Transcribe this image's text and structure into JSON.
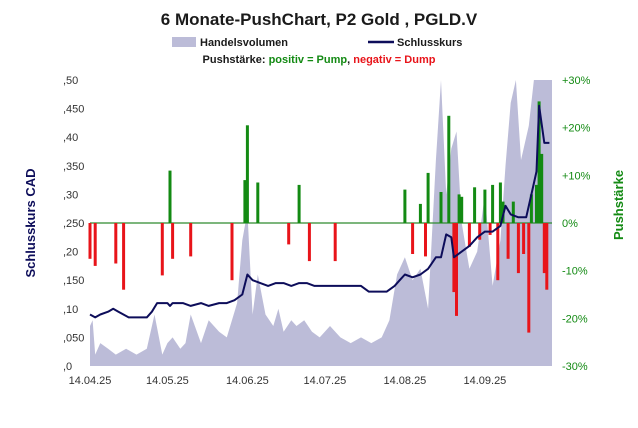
{
  "chart_data": {
    "type": "combo",
    "title": "6 Monate-PushChart, P2 Gold , PGLD.V",
    "legend": {
      "volume_label": "Handelsvolumen",
      "close_label": "Schlusskurs",
      "push_prefix": "Pushstärke: ",
      "push_positive": "positiv = Pump",
      "push_sep": ", ",
      "push_negative": "negativ = Dump",
      "placement": "top-center"
    },
    "ylabel_left": "Schlusskurs CAD",
    "ylabel_right": "Pushstärke",
    "ylim_left": [
      0,
      0.5
    ],
    "ylim_right": [
      -30,
      30
    ],
    "yticks_left": [
      ",0",
      ",050",
      ",10",
      ",150",
      ",20",
      ",250",
      ",30",
      ",350",
      ",40",
      ",450",
      ",50"
    ],
    "yticks_right": [
      "-30%",
      "-20%",
      "-10%",
      "0%",
      "+10%",
      "+20%",
      "+30%"
    ],
    "x_range": [
      "2025-04-14",
      "2025-10-10"
    ],
    "xticks": [
      {
        "date": "2025-04-14",
        "label": "14.04.25"
      },
      {
        "date": "2025-05-14",
        "label": "14.05.25"
      },
      {
        "date": "2025-06-14",
        "label": "14.06.25"
      },
      {
        "date": "2025-07-14",
        "label": "14.07.25"
      },
      {
        "date": "2025-08-14",
        "label": "14.08.25"
      },
      {
        "date": "2025-09-14",
        "label": "14.09.25"
      }
    ],
    "colors": {
      "volume": "#bcbcd8",
      "close": "#0d0d5a",
      "push_positive": "#138a13",
      "push_negative": "#e8141a",
      "zero_line": "#2e8b2e",
      "right_axis": "#138a13",
      "left_axis_title": "#0d0d5a"
    },
    "close_series": [
      [
        "2025-04-14",
        0.09
      ],
      [
        "2025-04-16",
        0.085
      ],
      [
        "2025-04-18",
        0.09
      ],
      [
        "2025-04-21",
        0.095
      ],
      [
        "2025-04-23",
        0.1
      ],
      [
        "2025-04-25",
        0.095
      ],
      [
        "2025-04-29",
        0.085
      ],
      [
        "2025-05-02",
        0.085
      ],
      [
        "2025-05-06",
        0.085
      ],
      [
        "2025-05-08",
        0.095
      ],
      [
        "2025-05-10",
        0.11
      ],
      [
        "2025-05-14",
        0.11
      ],
      [
        "2025-05-15",
        0.105
      ],
      [
        "2025-05-16",
        0.11
      ],
      [
        "2025-05-20",
        0.11
      ],
      [
        "2025-05-23",
        0.105
      ],
      [
        "2025-05-27",
        0.11
      ],
      [
        "2025-05-30",
        0.105
      ],
      [
        "2025-06-03",
        0.11
      ],
      [
        "2025-06-06",
        0.11
      ],
      [
        "2025-06-09",
        0.115
      ],
      [
        "2025-06-12",
        0.125
      ],
      [
        "2025-06-14",
        0.16
      ],
      [
        "2025-06-16",
        0.15
      ],
      [
        "2025-06-19",
        0.145
      ],
      [
        "2025-06-22",
        0.14
      ],
      [
        "2025-06-25",
        0.145
      ],
      [
        "2025-06-28",
        0.145
      ],
      [
        "2025-07-01",
        0.14
      ],
      [
        "2025-07-04",
        0.145
      ],
      [
        "2025-07-07",
        0.145
      ],
      [
        "2025-07-10",
        0.14
      ],
      [
        "2025-07-14",
        0.14
      ],
      [
        "2025-07-17",
        0.14
      ],
      [
        "2025-07-21",
        0.14
      ],
      [
        "2025-07-24",
        0.14
      ],
      [
        "2025-07-28",
        0.14
      ],
      [
        "2025-07-31",
        0.13
      ],
      [
        "2025-08-04",
        0.13
      ],
      [
        "2025-08-07",
        0.13
      ],
      [
        "2025-08-10",
        0.14
      ],
      [
        "2025-08-12",
        0.15
      ],
      [
        "2025-08-14",
        0.16
      ],
      [
        "2025-08-17",
        0.155
      ],
      [
        "2025-08-20",
        0.16
      ],
      [
        "2025-08-23",
        0.17
      ],
      [
        "2025-08-26",
        0.19
      ],
      [
        "2025-08-28",
        0.19
      ],
      [
        "2025-08-30",
        0.23
      ],
      [
        "2025-09-01",
        0.225
      ],
      [
        "2025-09-02",
        0.19
      ],
      [
        "2025-09-05",
        0.2
      ],
      [
        "2025-09-08",
        0.21
      ],
      [
        "2025-09-11",
        0.225
      ],
      [
        "2025-09-14",
        0.235
      ],
      [
        "2025-09-17",
        0.235
      ],
      [
        "2025-09-20",
        0.245
      ],
      [
        "2025-09-22",
        0.28
      ],
      [
        "2025-09-24",
        0.265
      ],
      [
        "2025-09-27",
        0.26
      ],
      [
        "2025-09-30",
        0.26
      ],
      [
        "2025-10-02",
        0.3
      ],
      [
        "2025-10-04",
        0.34
      ],
      [
        "2025-10-05",
        0.455
      ],
      [
        "2025-10-07",
        0.39
      ],
      [
        "2025-10-09",
        0.39
      ]
    ],
    "volume_series": [
      [
        "2025-04-14",
        0.07
      ],
      [
        "2025-04-15",
        0.08
      ],
      [
        "2025-04-16",
        0.02
      ],
      [
        "2025-04-18",
        0.04
      ],
      [
        "2025-04-21",
        0.03
      ],
      [
        "2025-04-24",
        0.02
      ],
      [
        "2025-04-28",
        0.03
      ],
      [
        "2025-05-02",
        0.02
      ],
      [
        "2025-05-06",
        0.03
      ],
      [
        "2025-05-09",
        0.09
      ],
      [
        "2025-05-12",
        0.02
      ],
      [
        "2025-05-14",
        0.04
      ],
      [
        "2025-05-16",
        0.05
      ],
      [
        "2025-05-19",
        0.03
      ],
      [
        "2025-05-21",
        0.04
      ],
      [
        "2025-05-23",
        0.09
      ],
      [
        "2025-05-27",
        0.04
      ],
      [
        "2025-05-30",
        0.08
      ],
      [
        "2025-06-03",
        0.06
      ],
      [
        "2025-06-06",
        0.05
      ],
      [
        "2025-06-10",
        0.11
      ],
      [
        "2025-06-12",
        0.22
      ],
      [
        "2025-06-14",
        0.27
      ],
      [
        "2025-06-16",
        0.09
      ],
      [
        "2025-06-18",
        0.16
      ],
      [
        "2025-06-21",
        0.09
      ],
      [
        "2025-06-24",
        0.07
      ],
      [
        "2025-06-26",
        0.1
      ],
      [
        "2025-06-28",
        0.06
      ],
      [
        "2025-07-01",
        0.08
      ],
      [
        "2025-07-03",
        0.07
      ],
      [
        "2025-07-06",
        0.08
      ],
      [
        "2025-07-09",
        0.06
      ],
      [
        "2025-07-12",
        0.05
      ],
      [
        "2025-07-16",
        0.07
      ],
      [
        "2025-07-20",
        0.05
      ],
      [
        "2025-07-24",
        0.04
      ],
      [
        "2025-07-28",
        0.05
      ],
      [
        "2025-08-01",
        0.04
      ],
      [
        "2025-08-05",
        0.05
      ],
      [
        "2025-08-08",
        0.08
      ],
      [
        "2025-08-11",
        0.16
      ],
      [
        "2025-08-14",
        0.19
      ],
      [
        "2025-08-17",
        0.15
      ],
      [
        "2025-08-20",
        0.17
      ],
      [
        "2025-08-23",
        0.1
      ],
      [
        "2025-08-26",
        0.36
      ],
      [
        "2025-08-28",
        0.5
      ],
      [
        "2025-08-30",
        0.3
      ],
      [
        "2025-09-01",
        0.38
      ],
      [
        "2025-09-03",
        0.41
      ],
      [
        "2025-09-05",
        0.25
      ],
      [
        "2025-09-08",
        0.17
      ],
      [
        "2025-09-11",
        0.2
      ],
      [
        "2025-09-14",
        0.3
      ],
      [
        "2025-09-17",
        0.14
      ],
      [
        "2025-09-20",
        0.22
      ],
      [
        "2025-09-22",
        0.35
      ],
      [
        "2025-09-24",
        0.46
      ],
      [
        "2025-09-26",
        0.5
      ],
      [
        "2025-09-28",
        0.36
      ],
      [
        "2025-10-01",
        0.42
      ],
      [
        "2025-10-03",
        0.5
      ],
      [
        "2025-10-06",
        0.5
      ],
      [
        "2025-10-08",
        0.5
      ],
      [
        "2025-10-10",
        0.5
      ]
    ],
    "push_bars": [
      [
        "2025-04-14",
        -7.5
      ],
      [
        "2025-04-16",
        -9
      ],
      [
        "2025-04-24",
        -8.5
      ],
      [
        "2025-04-27",
        -14
      ],
      [
        "2025-05-12",
        -11
      ],
      [
        "2025-05-15",
        11
      ],
      [
        "2025-05-16",
        -7.5
      ],
      [
        "2025-05-23",
        -7
      ],
      [
        "2025-06-08",
        -12
      ],
      [
        "2025-06-13",
        9
      ],
      [
        "2025-06-14",
        20.5
      ],
      [
        "2025-06-18",
        8.5
      ],
      [
        "2025-06-30",
        -4.5
      ],
      [
        "2025-07-04",
        8
      ],
      [
        "2025-07-08",
        -8
      ],
      [
        "2025-07-18",
        -8
      ],
      [
        "2025-08-14",
        7
      ],
      [
        "2025-08-17",
        -6.5
      ],
      [
        "2025-08-20",
        4
      ],
      [
        "2025-08-22",
        -7
      ],
      [
        "2025-08-23",
        10.5
      ],
      [
        "2025-08-28",
        6.5
      ],
      [
        "2025-08-31",
        22.5
      ],
      [
        "2025-09-02",
        -14.5
      ],
      [
        "2025-09-03",
        -19.5
      ],
      [
        "2025-09-04",
        6
      ],
      [
        "2025-09-05",
        5.5
      ],
      [
        "2025-09-08",
        -5
      ],
      [
        "2025-09-10",
        7.5
      ],
      [
        "2025-09-12",
        -3.5
      ],
      [
        "2025-09-14",
        7
      ],
      [
        "2025-09-16",
        -2.5
      ],
      [
        "2025-09-17",
        8
      ],
      [
        "2025-09-19",
        -12
      ],
      [
        "2025-09-20",
        8.5
      ],
      [
        "2025-09-21",
        4.5
      ],
      [
        "2025-09-23",
        -7.5
      ],
      [
        "2025-09-25",
        4.5
      ],
      [
        "2025-09-27",
        -10.5
      ],
      [
        "2025-09-29",
        -6.5
      ],
      [
        "2025-10-01",
        -23
      ],
      [
        "2025-10-02",
        6
      ],
      [
        "2025-10-04",
        8
      ],
      [
        "2025-10-05",
        25.5
      ],
      [
        "2025-10-06",
        14.5
      ],
      [
        "2025-10-07",
        -10.5
      ],
      [
        "2025-10-08",
        -14
      ]
    ]
  }
}
